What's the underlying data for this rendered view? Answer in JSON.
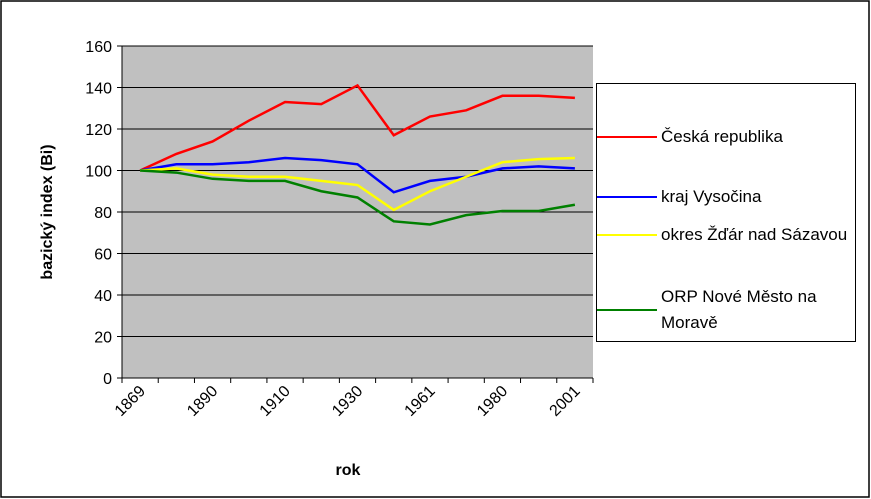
{
  "chart_data": {
    "type": "line",
    "x_label": "rok",
    "y_label": "bazický index (Bi)",
    "categories": [
      "1869",
      null,
      "1890",
      null,
      "1910",
      null,
      "1930",
      null,
      "1961",
      null,
      "1980",
      null,
      "2001"
    ],
    "ylim": [
      0,
      160
    ],
    "yticks": [
      0,
      20,
      40,
      60,
      80,
      100,
      120,
      140,
      160
    ],
    "grid": true,
    "series": [
      {
        "name": "Česká republika",
        "color": "#ff0000",
        "values": [
          100,
          108,
          114,
          124,
          133,
          132,
          141,
          117,
          126,
          129,
          136,
          136,
          135
        ]
      },
      {
        "name": "kraj Vysočina",
        "color": "#0000ff",
        "values": [
          100,
          103,
          103,
          104,
          106,
          105,
          103,
          89.5,
          95,
          97,
          101,
          102,
          101
        ]
      },
      {
        "name": "okres Žďár nad Sázavou",
        "color": "#ffff00",
        "values": [
          100,
          101,
          98,
          97,
          97,
          95,
          93,
          81,
          90,
          97,
          104,
          105.5,
          106
        ]
      },
      {
        "name": "ORP Nové Město na Moravě",
        "color": "#008000",
        "values": [
          100,
          99,
          96,
          95,
          95,
          90,
          87,
          75.5,
          74,
          78.5,
          80.5,
          80.5,
          83.5
        ]
      }
    ]
  }
}
